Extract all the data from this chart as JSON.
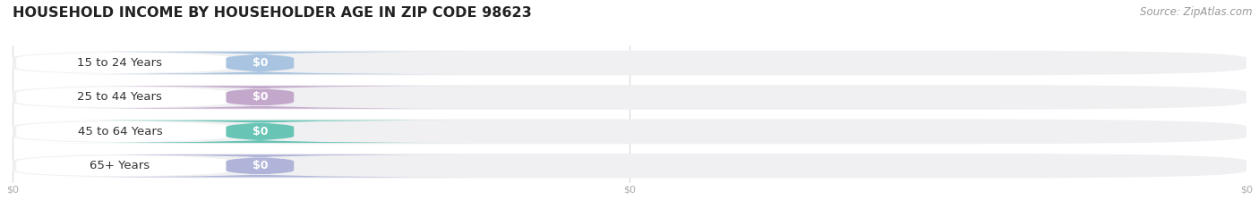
{
  "title": "HOUSEHOLD INCOME BY HOUSEHOLDER AGE IN ZIP CODE 98623",
  "source": "Source: ZipAtlas.com",
  "categories": [
    "15 to 24 Years",
    "25 to 44 Years",
    "45 to 64 Years",
    "65+ Years"
  ],
  "values": [
    0,
    0,
    0,
    0
  ],
  "bar_colors": [
    "#a8c4e0",
    "#c4a8cc",
    "#68c4b4",
    "#b0b4d8"
  ],
  "background_color": "#ffffff",
  "bar_bg_color": "#f0f0f2",
  "title_fontsize": 11.5,
  "label_fontsize": 9.5,
  "value_fontsize": 9,
  "source_fontsize": 8.5,
  "source_color": "#999999",
  "label_color": "#333333",
  "tick_color": "#aaaaaa",
  "grid_color": "#d8d8d8",
  "xtick_labels": [
    "$0",
    "$0",
    "$0"
  ],
  "xtick_positions": [
    0.0,
    0.5,
    1.0
  ]
}
